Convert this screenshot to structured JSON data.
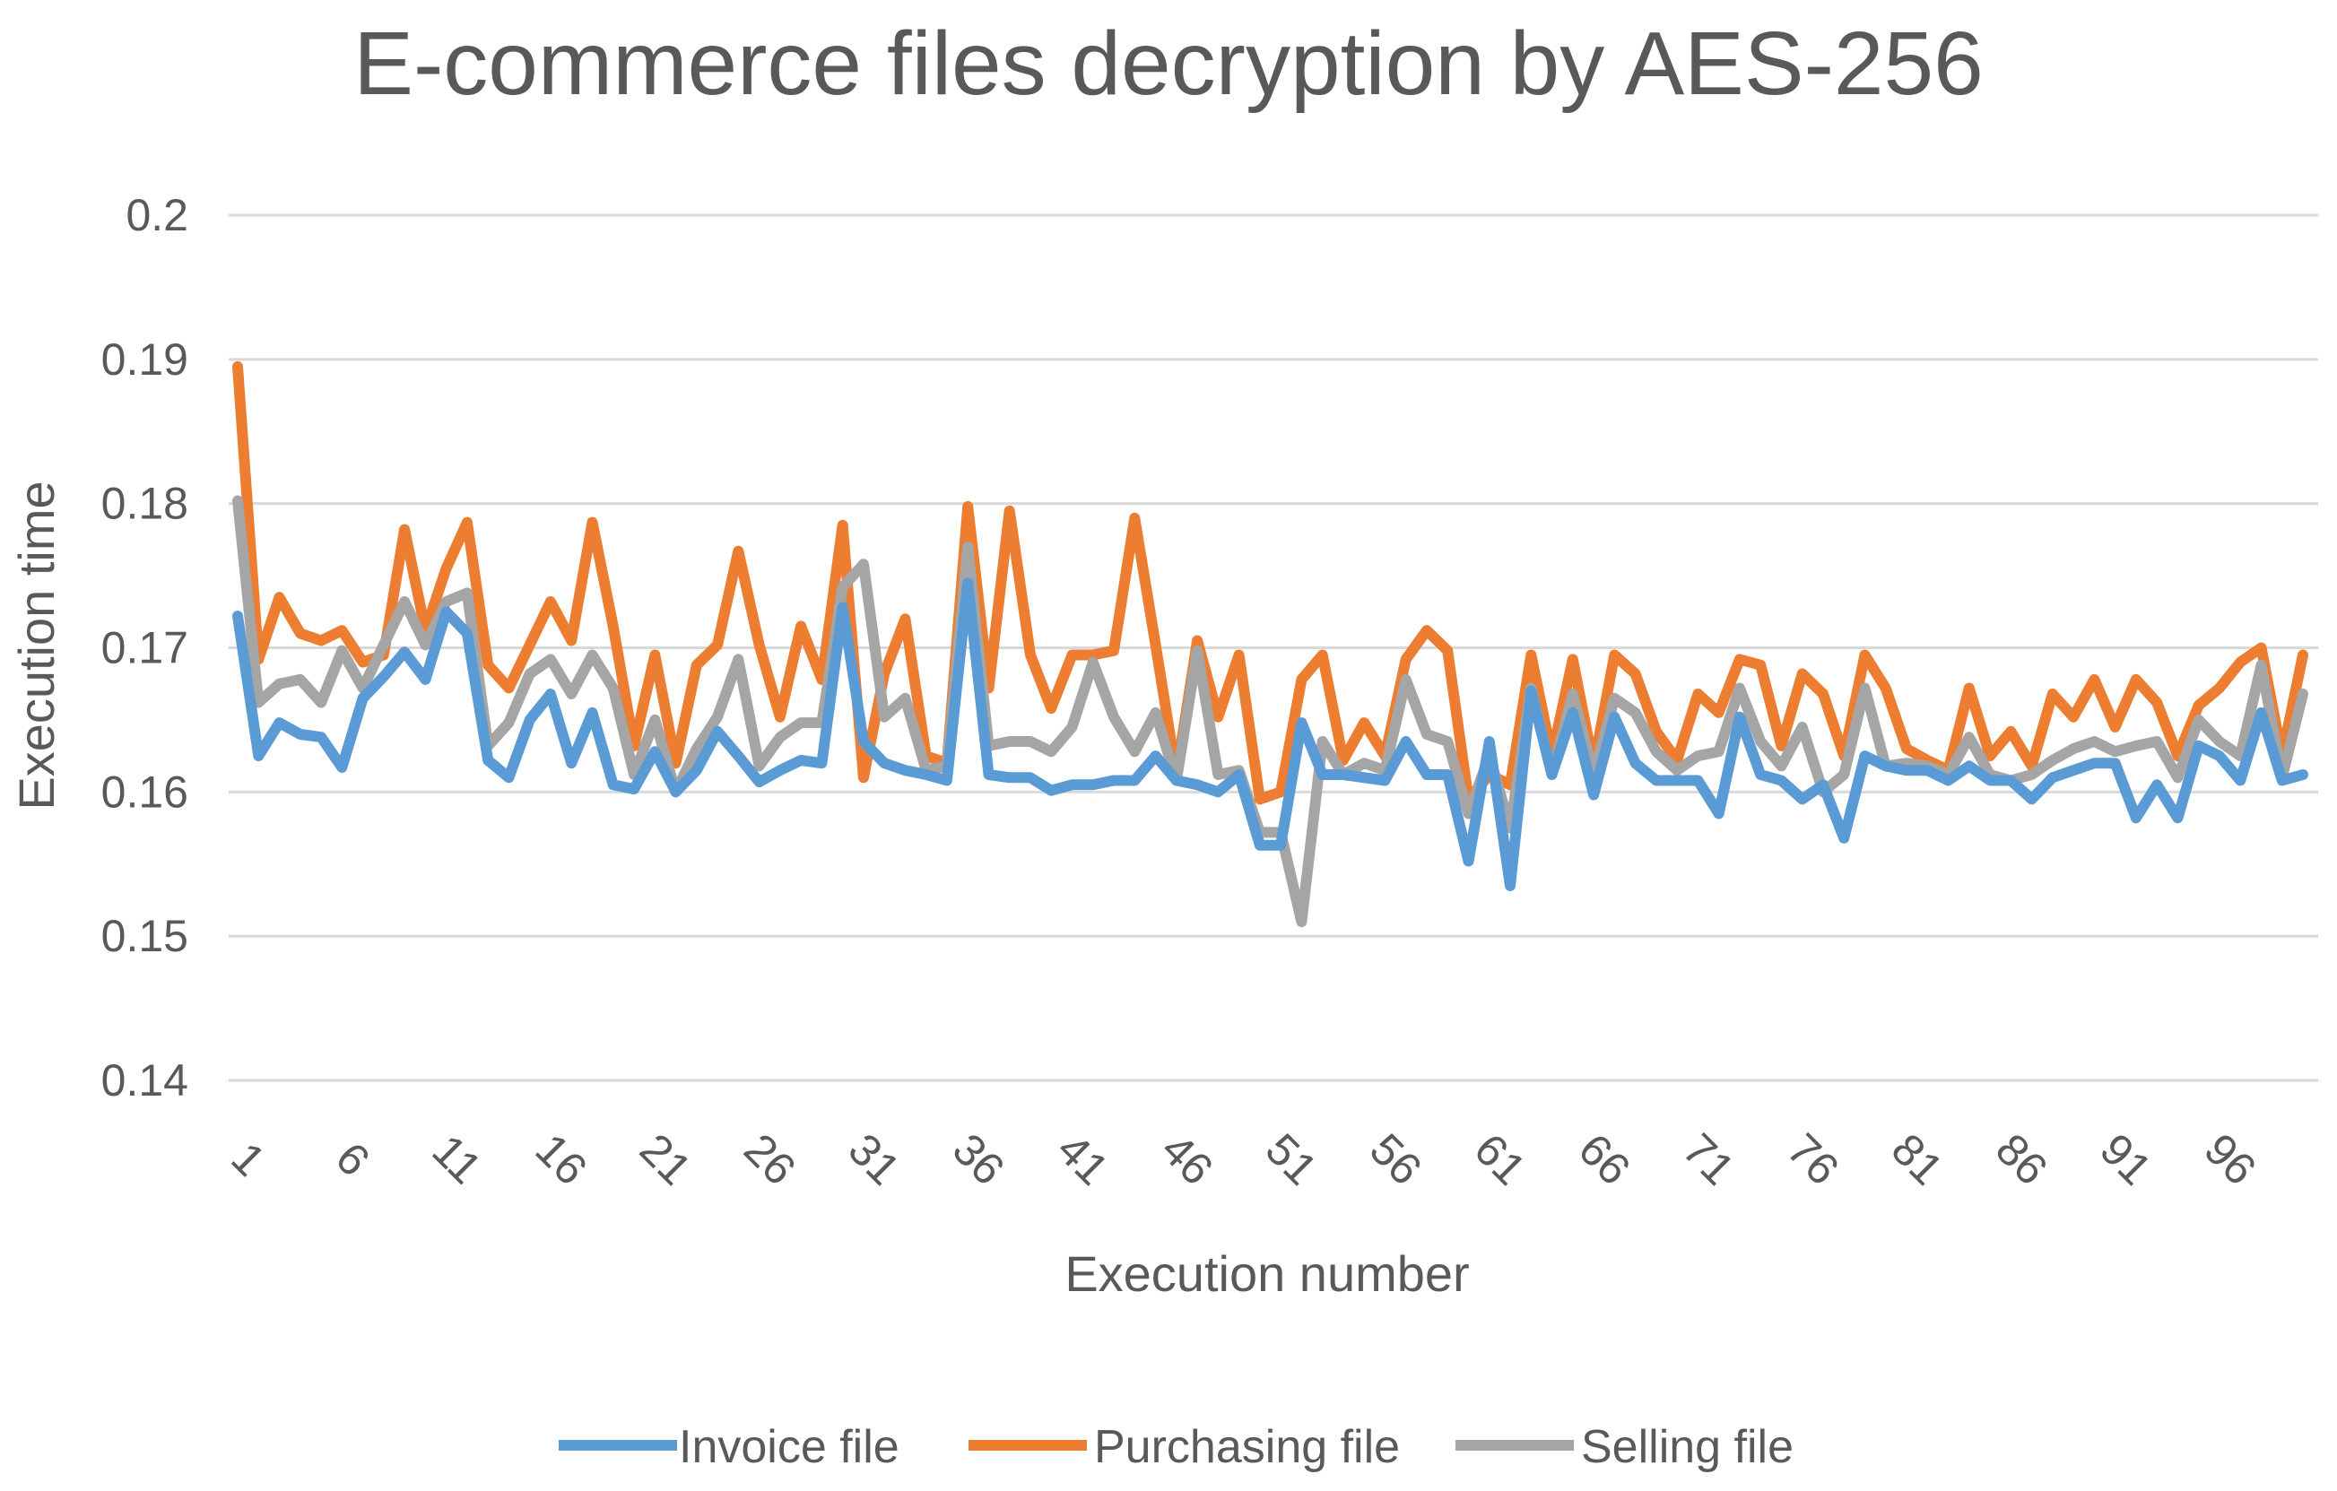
{
  "chart_data": {
    "type": "line",
    "title": "E-commerce files decryption by AES-256",
    "xlabel": "Execution number",
    "ylabel": "Execution time",
    "ylim": [
      0.14,
      0.2
    ],
    "yticks": [
      "0.14",
      "0.15",
      "0.16",
      "0.17",
      "0.18",
      "0.19",
      "0.2"
    ],
    "xlim": [
      1,
      100
    ],
    "xticks": [
      "1",
      "6",
      "11",
      "16",
      "21",
      "26",
      "31",
      "36",
      "41",
      "46",
      "51",
      "56",
      "61",
      "66",
      "71",
      "76",
      "81",
      "86",
      "91",
      "96"
    ],
    "grid": true,
    "legend": "bottom",
    "series": [
      {
        "name": "Invoice file",
        "color": "#5b9bd5",
        "values": [
          0.1722,
          0.1625,
          0.1648,
          0.164,
          0.1638,
          0.1617,
          0.1665,
          0.168,
          0.1697,
          0.1678,
          0.1725,
          0.171,
          0.1622,
          0.161,
          0.165,
          0.1668,
          0.162,
          0.1655,
          0.1605,
          0.1602,
          0.1628,
          0.16,
          0.1615,
          0.1642,
          0.1625,
          0.1607,
          0.1615,
          0.1622,
          0.162,
          0.1728,
          0.1635,
          0.162,
          0.1615,
          0.1612,
          0.1608,
          0.1745,
          0.1612,
          0.161,
          0.161,
          0.1601,
          0.1605,
          0.1605,
          0.1608,
          0.1608,
          0.1625,
          0.1608,
          0.1605,
          0.16,
          0.1612,
          0.1563,
          0.1563,
          0.1648,
          0.1612,
          0.1612,
          0.161,
          0.1608,
          0.1635,
          0.1612,
          0.1612,
          0.1552,
          0.1635,
          0.1535,
          0.167,
          0.1612,
          0.1655,
          0.1598,
          0.1652,
          0.162,
          0.1608,
          0.1608,
          0.1608,
          0.1585,
          0.1652,
          0.1612,
          0.1608,
          0.1595,
          0.1605,
          0.1568,
          0.1625,
          0.1618,
          0.1615,
          0.1615,
          0.1608,
          0.1618,
          0.1608,
          0.1608,
          0.1595,
          0.161,
          0.1615,
          0.162,
          0.162,
          0.1582,
          0.1605,
          0.1582,
          0.1632,
          0.1625,
          0.1608,
          0.1655,
          0.1608,
          0.1612
        ]
      },
      {
        "name": "Purchasing file",
        "color": "#ed7d31",
        "values": [
          0.1895,
          0.1692,
          0.1735,
          0.171,
          0.1705,
          0.1712,
          0.169,
          0.1695,
          0.1782,
          0.1712,
          0.1755,
          0.1787,
          0.1688,
          0.1672,
          0.1702,
          0.1732,
          0.1705,
          0.1787,
          0.1715,
          0.1632,
          0.1695,
          0.162,
          0.1688,
          0.1702,
          0.1767,
          0.1702,
          0.1652,
          0.1715,
          0.1678,
          0.1785,
          0.161,
          0.1682,
          0.172,
          0.1625,
          0.162,
          0.1798,
          0.1672,
          0.1795,
          0.1695,
          0.1658,
          0.1695,
          0.1695,
          0.1698,
          0.179,
          0.1702,
          0.1612,
          0.1705,
          0.1652,
          0.1695,
          0.1595,
          0.16,
          0.1678,
          0.1695,
          0.1622,
          0.1648,
          0.1625,
          0.1692,
          0.1712,
          0.1698,
          0.1595,
          0.1612,
          0.1605,
          0.1695,
          0.1625,
          0.1692,
          0.1618,
          0.1695,
          0.1682,
          0.1642,
          0.1622,
          0.1668,
          0.1655,
          0.1692,
          0.1688,
          0.1632,
          0.1682,
          0.1668,
          0.1625,
          0.1695,
          0.1672,
          0.163,
          0.1622,
          0.1615,
          0.1672,
          0.1625,
          0.1642,
          0.1618,
          0.1668,
          0.1652,
          0.1678,
          0.1645,
          0.1678,
          0.1662,
          0.1625,
          0.166,
          0.1672,
          0.169,
          0.17,
          0.1625,
          0.1695
        ]
      },
      {
        "name": "Selling file",
        "color": "#a5a5a5",
        "values": [
          0.1802,
          0.1662,
          0.1675,
          0.1678,
          0.1662,
          0.1698,
          0.1672,
          0.1702,
          0.1732,
          0.1702,
          0.1732,
          0.1738,
          0.1632,
          0.1648,
          0.1682,
          0.1692,
          0.1668,
          0.1695,
          0.1672,
          0.1612,
          0.165,
          0.16,
          0.163,
          0.1652,
          0.1692,
          0.1618,
          0.1638,
          0.1648,
          0.1648,
          0.1742,
          0.1758,
          0.1652,
          0.1665,
          0.1615,
          0.1618,
          0.177,
          0.1632,
          0.1635,
          0.1635,
          0.1628,
          0.1645,
          0.169,
          0.1652,
          0.1628,
          0.1655,
          0.1608,
          0.1698,
          0.1612,
          0.1615,
          0.1572,
          0.1572,
          0.151,
          0.1635,
          0.1612,
          0.162,
          0.1615,
          0.1678,
          0.164,
          0.1635,
          0.1585,
          0.1625,
          0.1575,
          0.1672,
          0.1612,
          0.1668,
          0.1612,
          0.1665,
          0.1655,
          0.1628,
          0.1615,
          0.1625,
          0.1628,
          0.1672,
          0.1635,
          0.1618,
          0.1645,
          0.16,
          0.1612,
          0.1672,
          0.1618,
          0.162,
          0.1618,
          0.1612,
          0.1638,
          0.1612,
          0.1608,
          0.1612,
          0.1622,
          0.163,
          0.1635,
          0.1628,
          0.1632,
          0.1635,
          0.161,
          0.165,
          0.1635,
          0.1625,
          0.1688,
          0.161,
          0.1668
        ]
      }
    ]
  }
}
